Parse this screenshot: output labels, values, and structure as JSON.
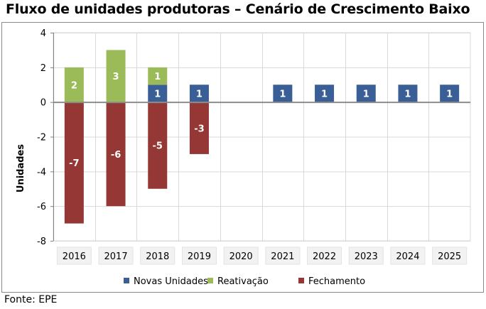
{
  "title": "Fluxo de unidades produtoras – Cenário de Crescimento Baixo",
  "source": "Fonte: EPE",
  "colors": {
    "novas": "#3a5f97",
    "reativacao": "#9bbb59",
    "fechamento": "#953735",
    "grid": "#d9d9d9",
    "axis": "#808080"
  },
  "chart_data": {
    "type": "bar",
    "stacked": true,
    "categories": [
      "2016",
      "2017",
      "2018",
      "2019",
      "2020",
      "2021",
      "2022",
      "2023",
      "2024",
      "2025"
    ],
    "series": [
      {
        "name": "Novas Unidades",
        "color_key": "novas",
        "values": [
          0,
          0,
          1,
          1,
          0,
          1,
          1,
          1,
          1,
          1
        ]
      },
      {
        "name": "Reativação",
        "color_key": "reativacao",
        "values": [
          2,
          3,
          1,
          0,
          0,
          0,
          0,
          0,
          0,
          0
        ]
      },
      {
        "name": "Fechamento",
        "color_key": "fechamento",
        "values": [
          -7,
          -6,
          -5,
          -3,
          0,
          0,
          0,
          0,
          0,
          0
        ]
      }
    ],
    "ylabel": "Unidades",
    "xlabel": "",
    "ylim": [
      -8,
      4
    ],
    "yticks": [
      4,
      2,
      0,
      -2,
      -4,
      -6,
      -8
    ],
    "grid": true,
    "legend_position": "bottom"
  }
}
